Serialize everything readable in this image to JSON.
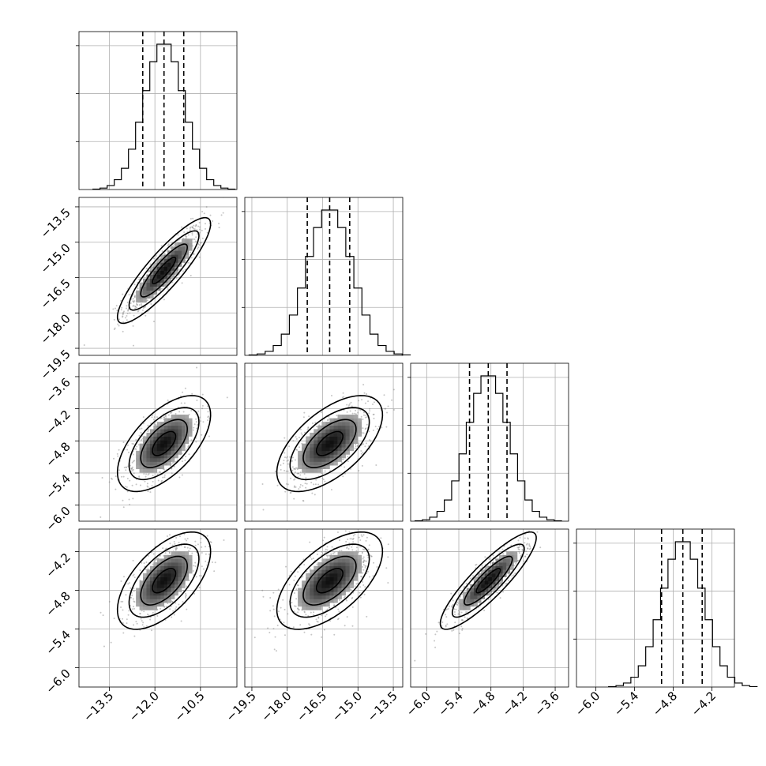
{
  "chart_data": {
    "type": "corner",
    "grid": true,
    "params": [
      {
        "ticks": [
          -13.5,
          -12.0,
          -10.5
        ],
        "tick_labels": [
          "−13.5",
          "−12.0",
          "−10.5"
        ],
        "range": [
          -14.5,
          -9.3
        ],
        "mean": -11.7,
        "std": 0.65,
        "quantiles": [
          -12.4,
          -11.7,
          -11.05
        ]
      },
      {
        "ticks": [
          -19.5,
          -18.0,
          -16.5,
          -15.0,
          -13.5
        ],
        "tick_labels": [
          "−19.5",
          "−18.0",
          "−16.5",
          "−15.0",
          "−13.5"
        ],
        "range": [
          -19.8,
          -13.1
        ],
        "mean": -16.2,
        "std": 0.95,
        "quantiles": [
          -17.15,
          -16.2,
          -15.35
        ]
      },
      {
        "ticks": [
          -6.0,
          -5.4,
          -4.8,
          -4.2,
          -3.6
        ],
        "tick_labels": [
          "−6.0",
          "−5.4",
          "−4.8",
          "−4.2",
          "−3.6"
        ],
        "range": [
          -6.3,
          -3.35
        ],
        "mean": -4.85,
        "std": 0.38,
        "quantiles": [
          -5.2,
          -4.85,
          -4.5
        ]
      },
      {
        "ticks": [
          -6.0,
          -5.4,
          -4.8,
          -4.2
        ],
        "tick_labels": [
          "−6.0",
          "−5.4",
          "−4.8",
          "−4.2"
        ],
        "range": [
          -6.3,
          -3.85
        ],
        "mean": -4.65,
        "std": 0.32,
        "quantiles": [
          -4.98,
          -4.65,
          -4.35
        ]
      }
    ],
    "correlations": [
      [
        1.0,
        0.88,
        0.6,
        0.6
      ],
      [
        0.88,
        1.0,
        0.6,
        0.6
      ],
      [
        0.6,
        0.6,
        1.0,
        0.88
      ],
      [
        0.6,
        0.6,
        0.88,
        1.0
      ]
    ],
    "histogram_bins": 20,
    "histogram_ticks": [
      0.33,
      0.66,
      0.99
    ],
    "contour_levels_sigma": [
      0.5,
      1.0,
      1.5,
      2.0
    ],
    "colors": {
      "hist": "#000000",
      "points": "#808080",
      "contours": "#000000",
      "grid": "#b0b0b0"
    }
  }
}
